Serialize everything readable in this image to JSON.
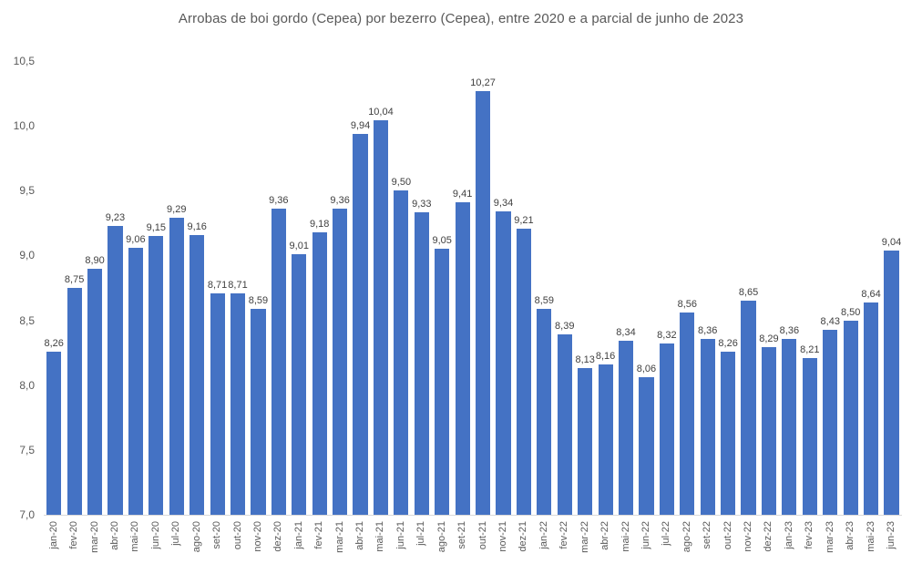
{
  "chart_data": {
    "type": "bar",
    "title": "Arrobas de boi gordo (Cepea) por bezerro (Cepea), entre 2020 e a parcial de junho de 2023",
    "xlabel": "",
    "ylabel": "",
    "categories": [
      "jan-20",
      "fev-20",
      "mar-20",
      "abr-20",
      "mai-20",
      "jun-20",
      "jul-20",
      "ago-20",
      "set-20",
      "out-20",
      "nov-20",
      "dez-20",
      "jan-21",
      "fev-21",
      "mar-21",
      "abr-21",
      "mai-21",
      "jun-21",
      "jul-21",
      "ago-21",
      "set-21",
      "out-21",
      "nov-21",
      "dez-21",
      "jan-22",
      "fev-22",
      "mar-22",
      "abr-22",
      "mai-22",
      "jun-22",
      "jul-22",
      "ago-22",
      "set-22",
      "out-22",
      "nov-22",
      "dez-22",
      "jan-23",
      "fev-23",
      "mar-23",
      "abr-23",
      "mai-23",
      "jun-23"
    ],
    "values": [
      8.26,
      8.75,
      8.9,
      9.23,
      9.06,
      9.15,
      9.29,
      9.16,
      8.71,
      8.71,
      8.59,
      9.36,
      9.01,
      9.18,
      9.36,
      9.94,
      10.04,
      9.5,
      9.33,
      9.05,
      9.41,
      10.27,
      9.34,
      9.21,
      8.59,
      8.39,
      8.13,
      8.16,
      8.34,
      8.06,
      8.32,
      8.56,
      8.36,
      8.26,
      8.65,
      8.29,
      8.36,
      8.21,
      8.43,
      8.5,
      8.64,
      9.04
    ],
    "value_labels": [
      "8,26",
      "8,75",
      "8,90",
      "9,23",
      "9,06",
      "9,15",
      "9,29",
      "9,16",
      "8,71",
      "8,71",
      "8,59",
      "9,36",
      "9,01",
      "9,18",
      "9,36",
      "9,94",
      "10,04",
      "9,50",
      "9,33",
      "9,05",
      "9,41",
      "10,27",
      "9,34",
      "9,21",
      "8,59",
      "8,39",
      "8,13",
      "8,16",
      "8,34",
      "8,06",
      "8,32",
      "8,56",
      "8,36",
      "8,26",
      "8,65",
      "8,29",
      "8,36",
      "8,21",
      "8,43",
      "8,50",
      "8,64",
      "9,04"
    ],
    "ylim": [
      7.0,
      10.5
    ],
    "ytick_values": [
      7.0,
      7.5,
      8.0,
      8.5,
      9.0,
      9.5,
      10.0,
      10.5
    ],
    "ytick_labels": [
      "7,0",
      "7,5",
      "8,0",
      "8,5",
      "9,0",
      "9,5",
      "10,0",
      "10,5"
    ],
    "grid": false,
    "legend": "none",
    "bar_color": "#4472C4",
    "value_label_color": "#404040",
    "axis_text_color": "#595959",
    "axis_line_color": "#D9D9D9"
  }
}
